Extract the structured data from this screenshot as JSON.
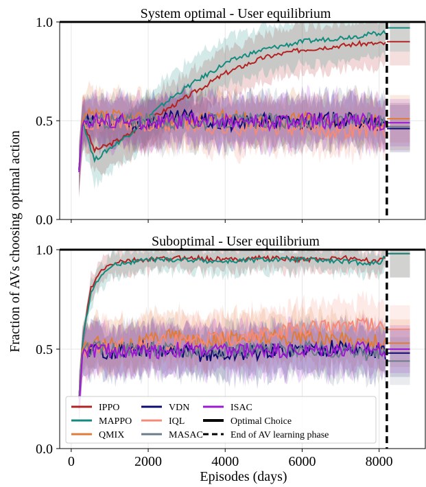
{
  "figure": {
    "ylabel": "Fraction of AVs choosing optimal action",
    "xlabel": "Episodes (days)",
    "end_phase_x": 8200,
    "optimal_y": 1.0
  },
  "colors": {
    "IPPO": "#b22222",
    "MAPPO": "#138a7e",
    "QMIX": "#e07b39",
    "VDN": "#0b0b73",
    "IQL": "#f58b77",
    "MASAC": "#6b7b8c",
    "ISAC": "#9b19d0",
    "optimal": "#000000"
  },
  "chart_data": [
    {
      "type": "line",
      "title": "System optimal - User equilibrium",
      "xlim": [
        -300,
        9200
      ],
      "ylim": [
        0.0,
        1.0
      ],
      "xticks": [
        0,
        2000,
        4000,
        6000,
        8000
      ],
      "yticks": [
        0.0,
        0.5,
        1.0
      ],
      "ytick_labels": [
        "0.0",
        "0.5",
        "1.0"
      ],
      "grid": true,
      "series": [
        {
          "name": "IPPO",
          "x": [
            200,
            300,
            600,
            1000,
            1500,
            2000,
            2500,
            3000,
            3500,
            4000,
            4500,
            5000,
            5500,
            6000,
            6500,
            7000,
            7500,
            8200,
            8800
          ],
          "y": [
            0.25,
            0.5,
            0.35,
            0.38,
            0.43,
            0.5,
            0.56,
            0.62,
            0.68,
            0.74,
            0.78,
            0.82,
            0.84,
            0.86,
            0.87,
            0.88,
            0.89,
            0.89,
            0.9
          ]
        },
        {
          "name": "MAPPO",
          "x": [
            200,
            300,
            600,
            1000,
            1500,
            2000,
            2500,
            3000,
            3500,
            4000,
            4500,
            5000,
            5500,
            6000,
            6500,
            7000,
            7500,
            8200,
            8800
          ],
          "y": [
            0.25,
            0.5,
            0.3,
            0.36,
            0.43,
            0.52,
            0.6,
            0.67,
            0.73,
            0.79,
            0.83,
            0.86,
            0.88,
            0.9,
            0.91,
            0.92,
            0.93,
            0.95,
            0.97
          ]
        },
        {
          "name": "QMIX",
          "x": [
            200,
            300,
            1000,
            2000,
            3000,
            4000,
            5000,
            6000,
            7000,
            8200,
            8800
          ],
          "y": [
            0.25,
            0.52,
            0.52,
            0.5,
            0.5,
            0.52,
            0.5,
            0.51,
            0.5,
            0.5,
            0.51
          ]
        },
        {
          "name": "VDN",
          "x": [
            200,
            300,
            1000,
            2000,
            3000,
            4000,
            5000,
            6000,
            7000,
            8200,
            8800
          ],
          "y": [
            0.25,
            0.5,
            0.48,
            0.49,
            0.52,
            0.48,
            0.5,
            0.49,
            0.51,
            0.47,
            0.46
          ]
        },
        {
          "name": "IQL",
          "x": [
            200,
            300,
            1000,
            2000,
            3000,
            4000,
            5000,
            6000,
            7000,
            8200,
            8800
          ],
          "y": [
            0.25,
            0.5,
            0.49,
            0.47,
            0.48,
            0.46,
            0.47,
            0.46,
            0.45,
            0.46,
            0.47
          ]
        },
        {
          "name": "MASAC",
          "x": [
            200,
            300,
            1000,
            2000,
            3000,
            4000,
            5000,
            6000,
            7000,
            8200,
            8800
          ],
          "y": [
            0.25,
            0.5,
            0.5,
            0.5,
            0.49,
            0.5,
            0.5,
            0.49,
            0.5,
            0.5,
            0.47
          ]
        },
        {
          "name": "ISAC",
          "x": [
            200,
            300,
            1000,
            2000,
            3000,
            4000,
            5000,
            6000,
            7000,
            8200,
            8800
          ],
          "y": [
            0.24,
            0.5,
            0.5,
            0.49,
            0.5,
            0.5,
            0.49,
            0.5,
            0.5,
            0.49,
            0.49
          ]
        }
      ]
    },
    {
      "type": "line",
      "title": "Suboptimal - User equilibrium",
      "xlim": [
        -300,
        9200
      ],
      "ylim": [
        0.0,
        1.0
      ],
      "xticks": [
        0,
        2000,
        4000,
        6000,
        8000
      ],
      "xtick_labels": [
        "0",
        "2000",
        "4000",
        "6000",
        "8000"
      ],
      "yticks": [
        0.0,
        0.5,
        1.0
      ],
      "ytick_labels": [
        "0.0",
        "0.5",
        "1.0"
      ],
      "grid": true,
      "legend": [
        {
          "label": "IPPO",
          "kind": "IPPO"
        },
        {
          "label": "MAPPO",
          "kind": "MAPPO"
        },
        {
          "label": "QMIX",
          "kind": "QMIX"
        },
        {
          "label": "VDN",
          "kind": "VDN"
        },
        {
          "label": "IQL",
          "kind": "IQL"
        },
        {
          "label": "MASAC",
          "kind": "MASAC"
        },
        {
          "label": "ISAC",
          "kind": "ISAC"
        },
        {
          "label": "Optimal Choice",
          "kind": "optimal"
        },
        {
          "label": "End of AV learning phase",
          "kind": "end"
        }
      ],
      "legend_position": "lower left",
      "series": [
        {
          "name": "IPPO",
          "x": [
            200,
            300,
            500,
            800,
            1200,
            2000,
            3000,
            4000,
            5000,
            6000,
            7000,
            8000,
            8200,
            8800
          ],
          "y": [
            0.25,
            0.55,
            0.8,
            0.9,
            0.94,
            0.95,
            0.96,
            0.95,
            0.96,
            0.95,
            0.96,
            0.94,
            0.97,
            0.98
          ]
        },
        {
          "name": "MAPPO",
          "x": [
            200,
            300,
            500,
            800,
            1200,
            2000,
            3000,
            4000,
            5000,
            6000,
            7000,
            8000,
            8200,
            8800
          ],
          "y": [
            0.25,
            0.55,
            0.78,
            0.88,
            0.93,
            0.95,
            0.95,
            0.94,
            0.95,
            0.95,
            0.94,
            0.93,
            0.97,
            0.98
          ]
        },
        {
          "name": "QMIX",
          "x": [
            200,
            300,
            1000,
            2000,
            2500,
            3000,
            4000,
            5000,
            6000,
            7000,
            8200,
            8800
          ],
          "y": [
            0.25,
            0.52,
            0.53,
            0.54,
            0.58,
            0.54,
            0.55,
            0.56,
            0.56,
            0.55,
            0.53,
            0.53
          ]
        },
        {
          "name": "VDN",
          "x": [
            200,
            300,
            1000,
            2000,
            3000,
            4000,
            5000,
            6000,
            7000,
            8200,
            8800
          ],
          "y": [
            0.25,
            0.5,
            0.49,
            0.5,
            0.48,
            0.47,
            0.49,
            0.5,
            0.51,
            0.48,
            0.48
          ]
        },
        {
          "name": "IQL",
          "x": [
            200,
            300,
            1000,
            2000,
            3000,
            4000,
            5000,
            6000,
            7000,
            7500,
            8200,
            8800
          ],
          "y": [
            0.25,
            0.5,
            0.51,
            0.53,
            0.54,
            0.55,
            0.57,
            0.6,
            0.62,
            0.63,
            0.61,
            0.6
          ]
        },
        {
          "name": "MASAC",
          "x": [
            200,
            300,
            1000,
            2000,
            3000,
            4000,
            5000,
            6000,
            7000,
            8200,
            8800
          ],
          "y": [
            0.25,
            0.5,
            0.5,
            0.5,
            0.49,
            0.5,
            0.5,
            0.5,
            0.49,
            0.47,
            0.44
          ]
        },
        {
          "name": "ISAC",
          "x": [
            200,
            300,
            1000,
            2000,
            3000,
            4000,
            5000,
            6000,
            7000,
            8200,
            8800
          ],
          "y": [
            0.2,
            0.5,
            0.49,
            0.49,
            0.5,
            0.49,
            0.5,
            0.49,
            0.5,
            0.5,
            0.5
          ]
        }
      ]
    }
  ]
}
